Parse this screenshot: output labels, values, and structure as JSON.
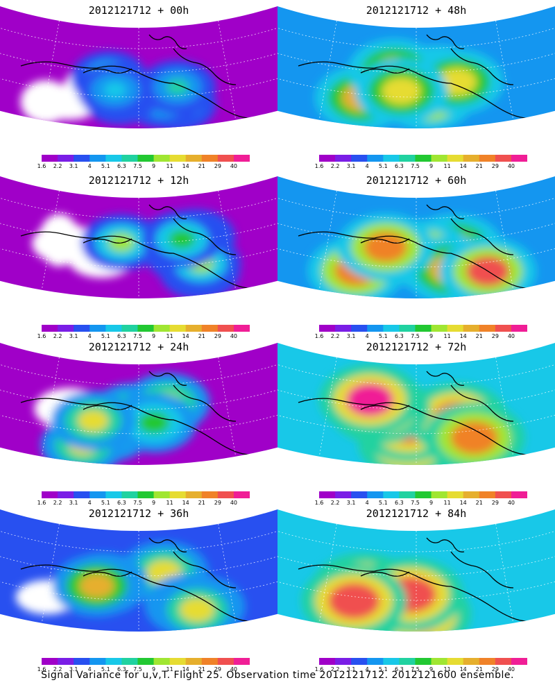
{
  "panels": [
    {
      "title": "2012121712 + 00h",
      "level": 0
    },
    {
      "title": "2012121712 + 48h",
      "level": 4
    },
    {
      "title": "2012121712 + 12h",
      "level": 1
    },
    {
      "title": "2012121712 + 60h",
      "level": 5
    },
    {
      "title": "2012121712 + 24h",
      "level": 2
    },
    {
      "title": "2012121712 + 72h",
      "level": 6
    },
    {
      "title": "2012121712 + 36h",
      "level": 3
    },
    {
      "title": "2012121712 + 84h",
      "level": 7
    }
  ],
  "colorbar": {
    "labels": [
      "1.6",
      "2.2",
      "3.1",
      "4",
      "5.1",
      "6.3",
      "7.5",
      "9",
      "11",
      "14",
      "21",
      "29",
      "40"
    ],
    "colors": [
      "#a000c8",
      "#7a1ee6",
      "#2850f0",
      "#1496f0",
      "#18c8e8",
      "#20d2a0",
      "#22c832",
      "#a0e632",
      "#e6dc32",
      "#e6af2d",
      "#f08228",
      "#f05050",
      "#f01e96"
    ]
  },
  "footer": "Signal Variance for u,v,T. Flight 25. Observation time 2012121712. 2012121600 ensemble."
}
